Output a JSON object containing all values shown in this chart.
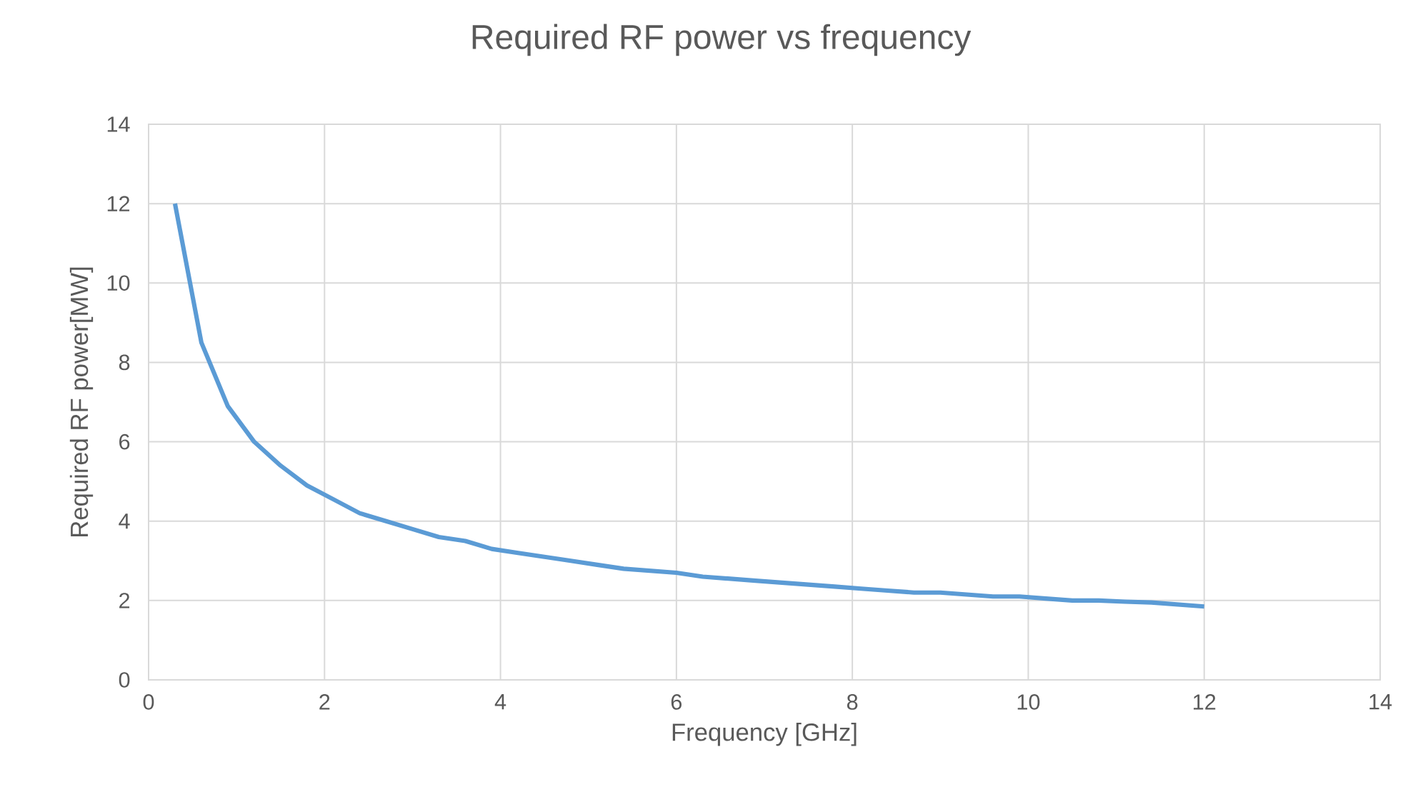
{
  "chart_data": {
    "type": "line",
    "title": "Required RF power vs frequency",
    "xlabel": "Frequency [GHz]",
    "ylabel": "Required RF power[MW]",
    "x": [
      0.3,
      0.6,
      0.9,
      1.2,
      1.5,
      1.8,
      2.1,
      2.4,
      2.7,
      3.0,
      3.3,
      3.6,
      3.9,
      4.2,
      4.5,
      4.8,
      5.1,
      5.4,
      5.7,
      6.0,
      6.3,
      6.6,
      6.9,
      7.2,
      7.5,
      7.8,
      8.1,
      8.4,
      8.7,
      9.0,
      9.3,
      9.6,
      9.9,
      10.2,
      10.5,
      10.8,
      11.1,
      11.4,
      11.7,
      12.0
    ],
    "series": [
      {
        "color": "#5b9bd5",
        "values": [
          12.0,
          8.5,
          6.9,
          6.0,
          5.4,
          4.9,
          4.55,
          4.2,
          4.0,
          3.8,
          3.6,
          3.5,
          3.3,
          3.2,
          3.1,
          3.0,
          2.9,
          2.8,
          2.75,
          2.7,
          2.6,
          2.55,
          2.5,
          2.45,
          2.4,
          2.35,
          2.3,
          2.25,
          2.2,
          2.2,
          2.15,
          2.1,
          2.1,
          2.05,
          2.0,
          2.0,
          1.97,
          1.95,
          1.9,
          1.85
        ]
      }
    ],
    "xlim": [
      0,
      14
    ],
    "ylim": [
      0,
      14
    ],
    "xticks": [
      0,
      2,
      4,
      6,
      8,
      10,
      12,
      14
    ],
    "yticks": [
      0,
      2,
      4,
      6,
      8,
      10,
      12,
      14
    ],
    "grid": true,
    "marker": "none",
    "line_style": "solid"
  }
}
